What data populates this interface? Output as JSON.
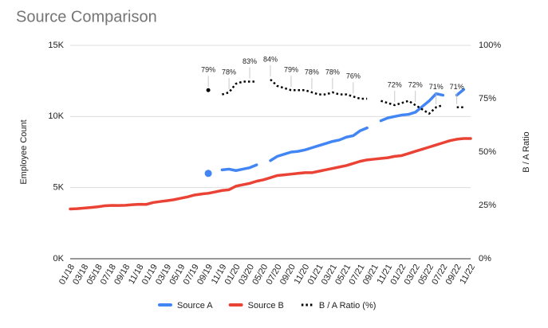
{
  "chart_data": {
    "type": "line",
    "title": "Source Comparison",
    "y_label": "Employee Count",
    "y2_label": "B / A Ratio",
    "categories": [
      "01/18",
      null,
      "03/18",
      null,
      "05/18",
      null,
      "07/18",
      null,
      "09/18",
      null,
      "11/18",
      null,
      "01/19",
      null,
      "03/19",
      null,
      "05/19",
      null,
      "07/19",
      null,
      "09/19",
      null,
      "11/19",
      null,
      "01/20",
      null,
      "03/20",
      null,
      "05/20",
      null,
      "07/20",
      null,
      "09/20",
      null,
      "11/20",
      null,
      "01/21",
      null,
      "03/21",
      null,
      "05/21",
      null,
      "07/21",
      null,
      "09/21",
      null,
      "11/21",
      null,
      "01/22",
      null,
      "03/22",
      null,
      "05/22",
      null,
      "07/22",
      null,
      "09/22",
      null,
      "11/22"
    ],
    "series": [
      {
        "name": "Source A",
        "color": "#4285f4",
        "style": "solid",
        "values": [
          null,
          null,
          null,
          null,
          null,
          null,
          null,
          null,
          null,
          null,
          null,
          null,
          null,
          null,
          null,
          null,
          null,
          null,
          null,
          null,
          6000,
          null,
          6250,
          6300,
          6200,
          6300,
          6400,
          6600,
          null,
          6900,
          7200,
          7350,
          7500,
          7550,
          7650,
          7800,
          7950,
          8100,
          8250,
          8350,
          8550,
          8650,
          9000,
          9200,
          null,
          9700,
          9900,
          10000,
          10100,
          10150,
          10300,
          10700,
          11100,
          11600,
          11500,
          null,
          11500,
          11900,
          null
        ]
      },
      {
        "name": "Source B",
        "color": "#ea4335",
        "style": "solid",
        "values": [
          3500,
          3520,
          3560,
          3600,
          3650,
          3720,
          3750,
          3740,
          3760,
          3800,
          3830,
          3820,
          3950,
          4020,
          4080,
          4150,
          4250,
          4350,
          4480,
          4550,
          4600,
          4700,
          4800,
          4850,
          5100,
          5200,
          5300,
          5450,
          5550,
          5700,
          5850,
          5900,
          5950,
          6000,
          6050,
          6050,
          6150,
          6250,
          6350,
          6450,
          6550,
          6700,
          6850,
          6950,
          7000,
          7050,
          7100,
          7200,
          7250,
          7400,
          7550,
          7700,
          7850,
          8000,
          8150,
          8300,
          8400,
          8450,
          8450
        ]
      },
      {
        "name": "B / A Ratio (%)",
        "color": "#000000",
        "style": "dotted",
        "axis": "y2",
        "values": [
          null,
          null,
          null,
          null,
          null,
          null,
          null,
          null,
          null,
          null,
          null,
          null,
          null,
          null,
          null,
          null,
          null,
          null,
          null,
          null,
          79,
          null,
          77,
          78,
          82,
          83,
          83,
          83,
          null,
          84,
          81,
          80,
          79,
          79,
          79,
          78,
          77,
          77,
          78,
          77,
          77,
          76,
          75,
          75,
          null,
          74,
          73,
          72,
          73,
          74,
          72,
          70,
          68,
          71,
          72,
          null,
          71,
          71,
          null
        ],
        "value_labels": [
          null,
          null,
          null,
          null,
          null,
          null,
          null,
          null,
          null,
          null,
          null,
          null,
          null,
          null,
          null,
          null,
          null,
          null,
          null,
          null,
          "79%",
          null,
          null,
          "78%",
          null,
          null,
          "83%",
          null,
          null,
          "84%",
          null,
          null,
          "79%",
          null,
          null,
          "78%",
          null,
          null,
          "78%",
          null,
          null,
          "76%",
          null,
          null,
          null,
          null,
          null,
          "72%",
          null,
          null,
          "72%",
          null,
          null,
          "71%",
          null,
          null,
          "71%",
          null,
          null
        ]
      }
    ],
    "ylim": [
      0,
      15000
    ],
    "yticks": [
      {
        "value": 0,
        "label": "0K"
      },
      {
        "value": 5000,
        "label": "5K"
      },
      {
        "value": 10000,
        "label": "10K"
      },
      {
        "value": 15000,
        "label": "15K"
      }
    ],
    "y2lim": [
      0,
      100
    ],
    "y2ticks": [
      {
        "value": 0,
        "label": "0%"
      },
      {
        "value": 25,
        "label": "25%"
      },
      {
        "value": 50,
        "label": "50%"
      },
      {
        "value": 75,
        "label": "75%"
      },
      {
        "value": 100,
        "label": "100%"
      }
    ],
    "grid": true,
    "legend": "bottom"
  }
}
